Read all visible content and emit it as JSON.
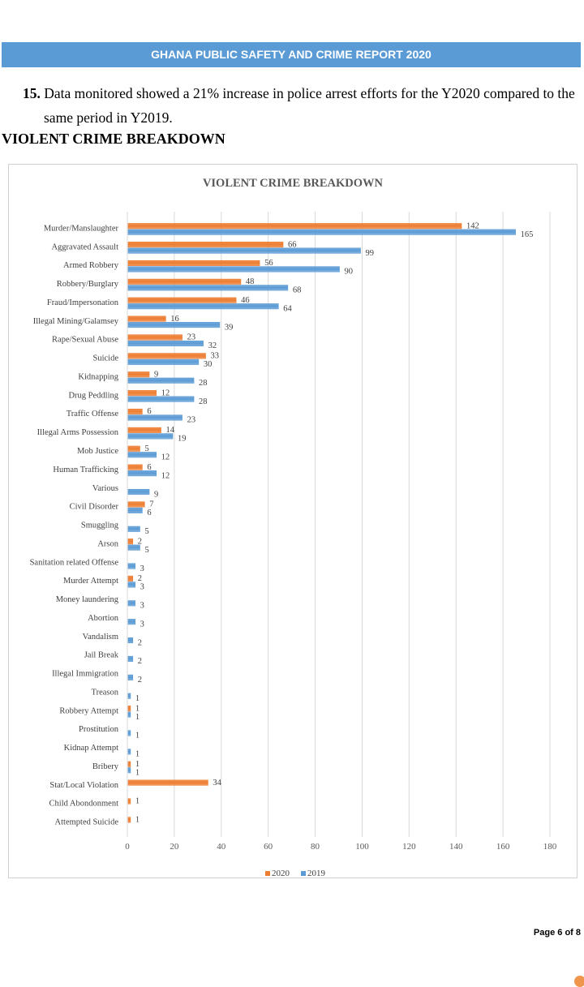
{
  "header": {
    "banner_title": "GHANA PUBLIC SAFETY AND CRIME REPORT 2020"
  },
  "paragraph": {
    "number": "15.",
    "line1": "Data monitored showed a 21% increase in police arrest efforts for the Y2020 compared to the",
    "line2": "same period in Y2019."
  },
  "section_title": "VIOLENT CRIME BREAKDOWN",
  "footer": {
    "page_label": "Page 6 of 8"
  },
  "colors": {
    "banner": "#5b9bd5",
    "series_2020": "#ed7d31",
    "series_2019": "#5b9bd5"
  },
  "chart_data": {
    "type": "bar",
    "orientation": "horizontal",
    "title": "VIOLENT CRIME BREAKDOWN",
    "xlabel": "",
    "ylabel": "",
    "xlim": [
      0,
      180
    ],
    "xticks": [
      0,
      20,
      40,
      60,
      80,
      100,
      120,
      140,
      160,
      180
    ],
    "grid": true,
    "legend_position": "bottom",
    "categories": [
      "Murder/Manslaughter",
      "Aggravated Assault",
      "Armed Robbery",
      "Robbery/Burglary",
      "Fraud/Impersonation",
      "Illegal Mining/Galamsey",
      "Rape/Sexual Abuse",
      "Suicide",
      "Kidnapping",
      "Drug Peddling",
      "Traffic Offense",
      "Illegal Arms Possession",
      "Mob Justice",
      "Human Trafficking",
      "Various",
      "Civil Disorder",
      "Smuggling",
      "Arson",
      "Sanitation related Offense",
      "Murder Attempt",
      "Money laundering",
      "Abortion",
      "Vandalism",
      "Jail Break",
      "Illegal Immigration",
      "Treason",
      "Robbery Attempt",
      "Prostitution",
      "Kidnap Attempt",
      "Bribery",
      "Stat/Local Violation",
      "Child Abondonment",
      "Attempted Suicide"
    ],
    "series": [
      {
        "name": "2020",
        "color": "#ed7d31",
        "values": [
          142,
          66,
          56,
          48,
          46,
          16,
          23,
          33,
          9,
          12,
          6,
          14,
          5,
          6,
          null,
          7,
          null,
          2,
          null,
          2,
          null,
          null,
          null,
          null,
          null,
          null,
          1,
          null,
          null,
          1,
          34,
          1,
          1
        ]
      },
      {
        "name": "2019",
        "color": "#5b9bd5",
        "values": [
          165,
          99,
          90,
          68,
          64,
          39,
          32,
          30,
          28,
          28,
          23,
          19,
          12,
          12,
          9,
          6,
          5,
          5,
          3,
          3,
          3,
          3,
          2,
          2,
          2,
          1,
          1,
          1,
          1,
          1,
          null,
          null,
          null
        ]
      }
    ]
  }
}
